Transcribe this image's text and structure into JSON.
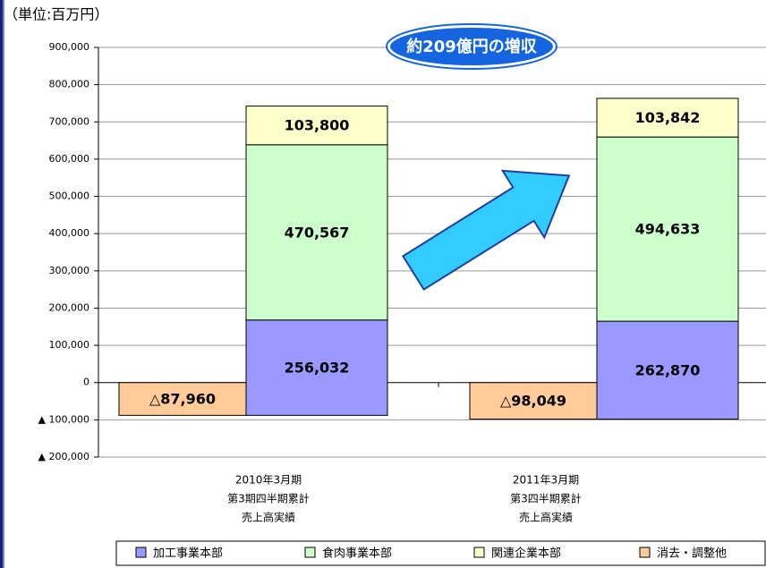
{
  "chart_data": {
    "type": "bar",
    "stacked": true,
    "y_label": "（単位:百万円）",
    "annotation": "約209億円の増収",
    "categories": [
      [
        "2010年3月期",
        "第3期四半期累計",
        "売上高実績"
      ],
      [
        "2011年3月期",
        "第3四半期累計",
        "売上高実績"
      ]
    ],
    "series": [
      {
        "name": "加工事業本部",
        "color": "#9999ff",
        "values": [
          256032,
          262870
        ],
        "value_labels": [
          "256,032",
          "262,870"
        ]
      },
      {
        "name": "食肉事業本部",
        "color": "#ccffcc",
        "values": [
          470567,
          494633
        ],
        "value_labels": [
          "470,567",
          "494,633"
        ]
      },
      {
        "name": "関連企業本部",
        "color": "#ffffcc",
        "values": [
          103800,
          103842
        ],
        "value_labels": [
          "103,800",
          "103,842"
        ]
      },
      {
        "name": "消去・調整他",
        "color": "#ffcc99",
        "values": [
          -87960,
          -98049
        ],
        "value_labels": [
          "△87,960",
          "△98,049"
        ]
      }
    ],
    "ylim": [
      -200000,
      900000
    ],
    "yticks": [
      {
        "value": -200000,
        "label": "▲ 200,000"
      },
      {
        "value": -100000,
        "label": "▲ 100,000"
      },
      0,
      {
        "value": 100000,
        "label": "100,000"
      },
      {
        "value": 200000,
        "label": "200,000"
      },
      {
        "value": 300000,
        "label": "300,000"
      },
      {
        "value": 400000,
        "label": "400,000"
      },
      {
        "value": 500000,
        "label": "500,000"
      },
      {
        "value": 600000,
        "label": "600,000"
      },
      {
        "value": 700000,
        "label": "700,000"
      },
      {
        "value": 800000,
        "label": "800,000"
      },
      {
        "value": 900000,
        "label": "900,000"
      }
    ],
    "grid": true,
    "legend": "bottom"
  }
}
